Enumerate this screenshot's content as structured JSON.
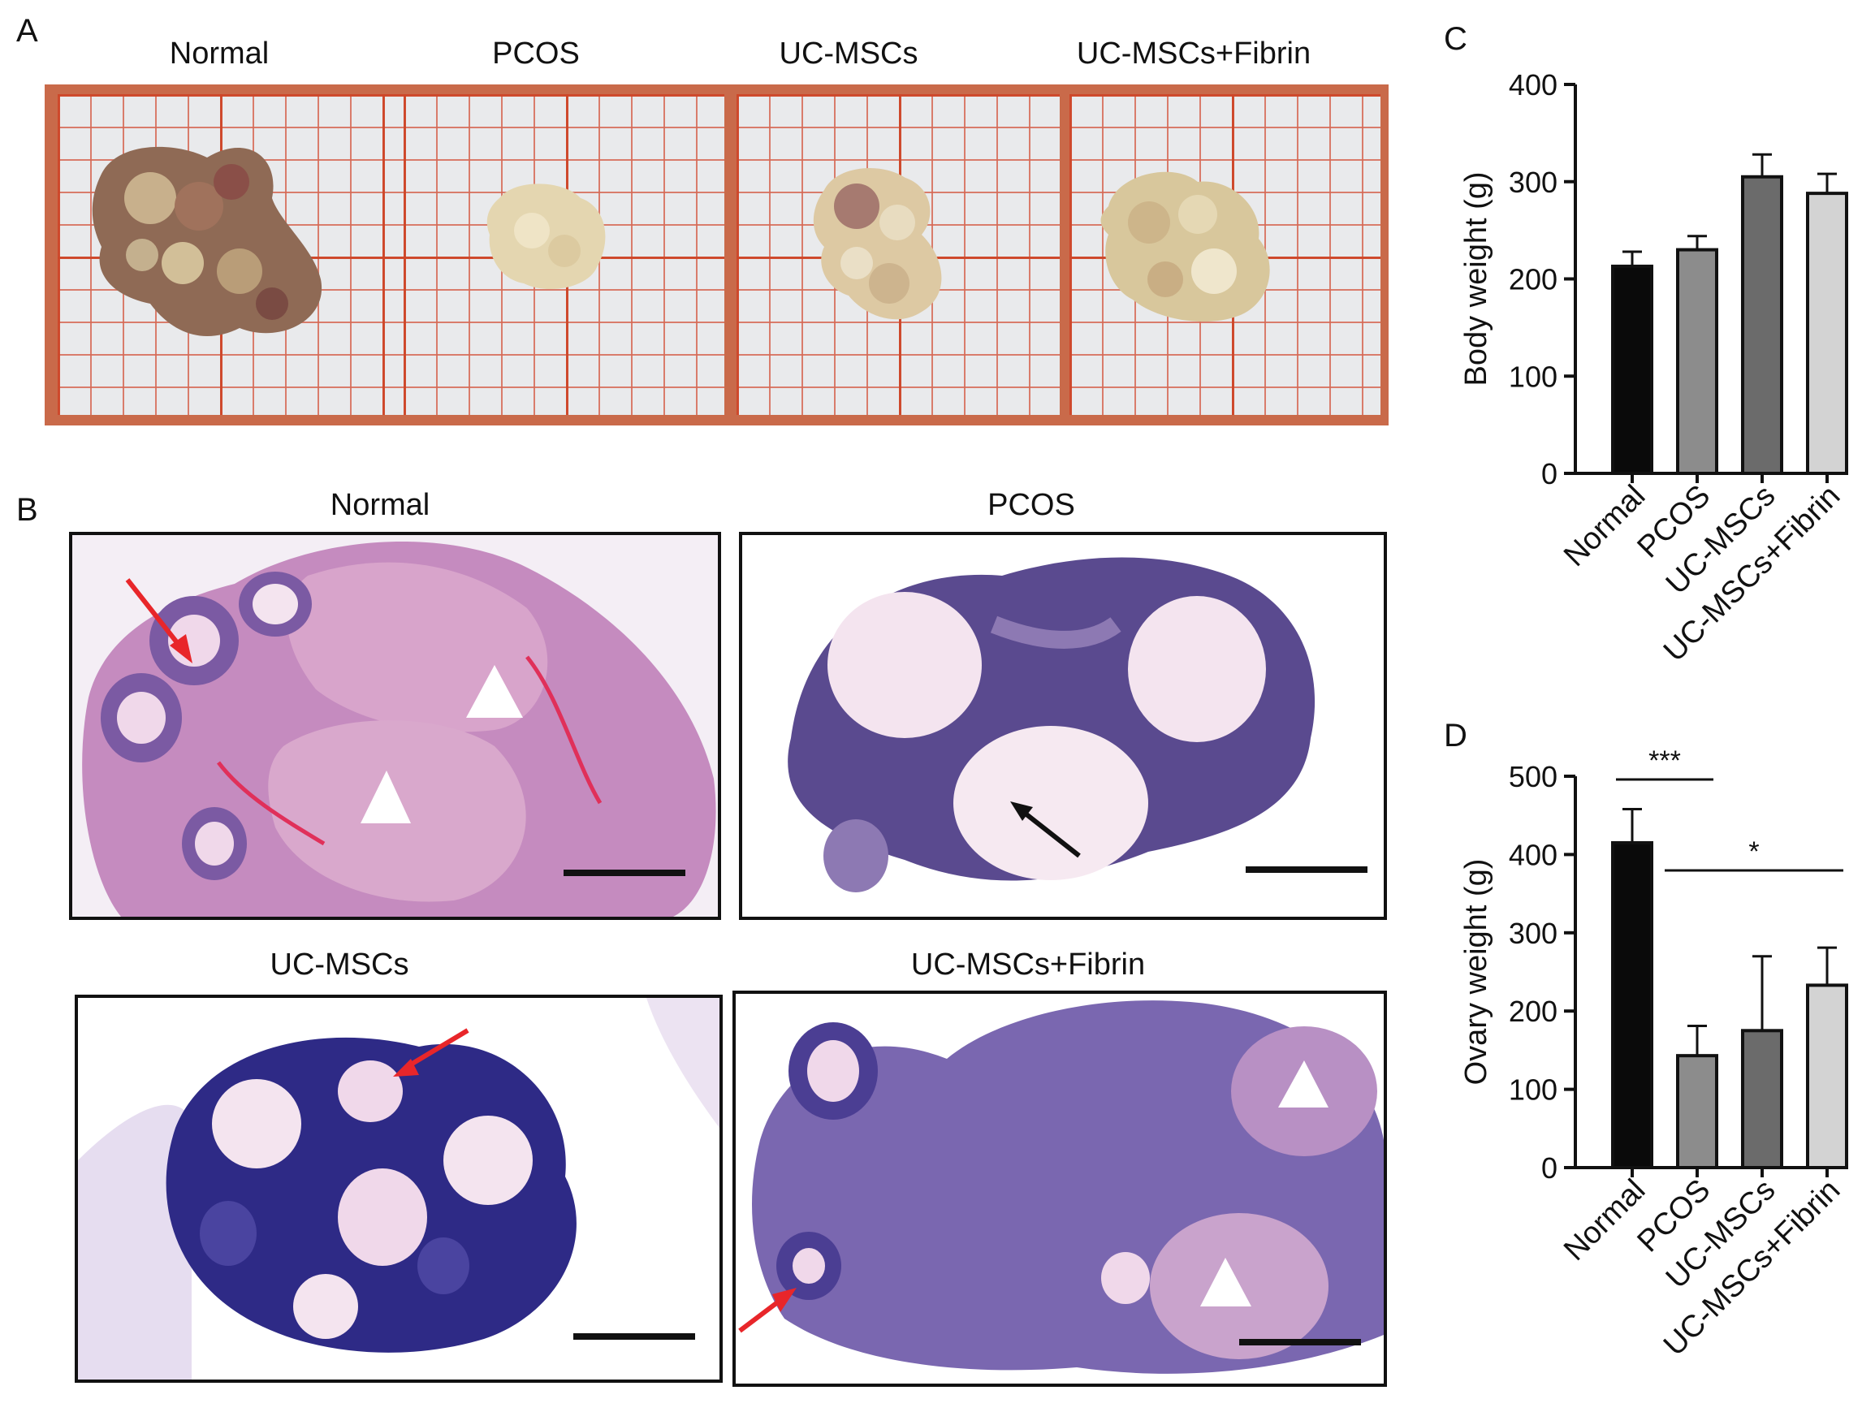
{
  "panels": {
    "A": {
      "label": "A",
      "groups": [
        "Normal",
        "PCOS",
        "UC-MSCs",
        "UC-MSCs+Fibrin"
      ]
    },
    "B": {
      "label": "B",
      "groups": [
        "Normal",
        "PCOS",
        "UC-MSCs",
        "UC-MSCs+Fibrin"
      ]
    },
    "C": {
      "label": "C"
    },
    "D": {
      "label": "D"
    }
  },
  "colors": {
    "normal": "#0a0a0a",
    "pcos": "#8c8c8c",
    "uc_mscs": "#6b6b6b",
    "uc_mscs_fibrin": "#d3d3d3",
    "grid_paper": "#e9eaec",
    "grid_line": "#ce4628",
    "red_arrow": "#e8262a",
    "black_arrow": "#111111"
  },
  "chart_data": [
    {
      "type": "bar",
      "panel": "C",
      "categories": [
        "Normal",
        "PCOS",
        "UC-MSCs",
        "UC-MSCs+Fibrin"
      ],
      "values": [
        213,
        230,
        305,
        288
      ],
      "errors": [
        15,
        14,
        23,
        20
      ],
      "xlabel": "",
      "ylabel": "Body weight (g)",
      "ylim": [
        0,
        400
      ],
      "yticks": [
        "0",
        "100",
        "200",
        "300",
        "400"
      ],
      "grid": false,
      "significance": []
    },
    {
      "type": "bar",
      "panel": "D",
      "categories": [
        "Normal",
        "PCOS",
        "UC-MSCs",
        "UC-MSCs+Fibrin"
      ],
      "values": [
        415,
        143,
        175,
        233
      ],
      "errors": [
        43,
        38,
        95,
        48
      ],
      "xlabel": "",
      "ylabel": "Ovary weight (g)",
      "ylim": [
        0,
        500
      ],
      "yticks": [
        "0",
        "100",
        "200",
        "300",
        "400",
        "500"
      ],
      "grid": false,
      "significance": [
        {
          "from": "Normal",
          "to": "PCOS",
          "label": "***"
        },
        {
          "from": "PCOS",
          "to": "UC-MSCs+Fibrin",
          "label": "*"
        }
      ]
    }
  ]
}
